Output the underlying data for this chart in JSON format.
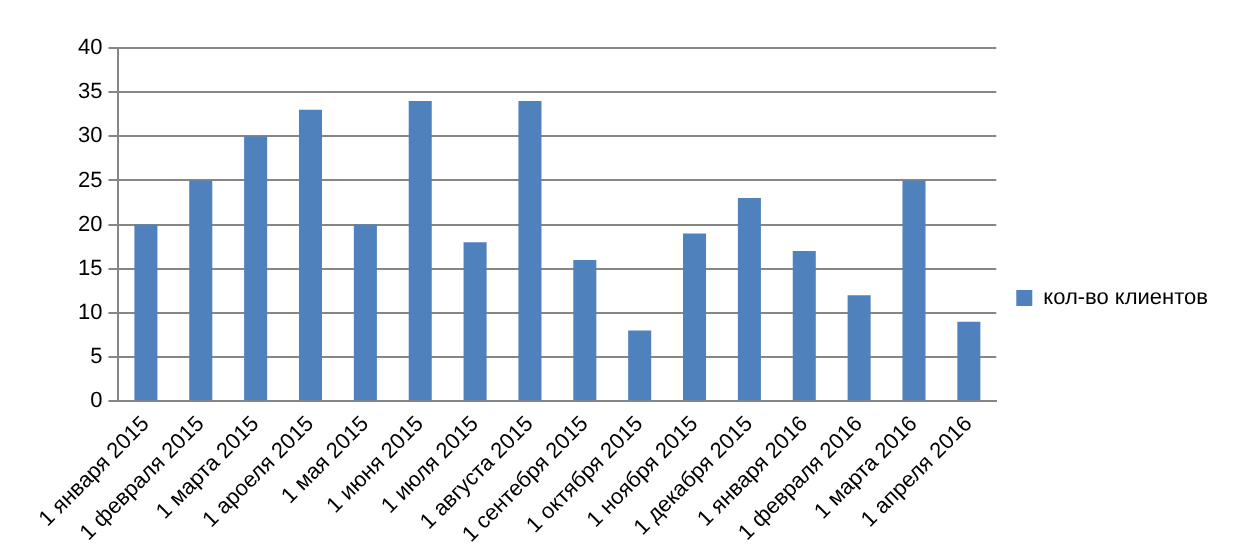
{
  "chart_data": {
    "type": "bar",
    "categories": [
      "1 января 2015",
      "1 февраля 2015",
      "1 марта 2015",
      "1 ароеля 2015",
      "1 мая 2015",
      "1 июня 2015",
      "1 июля 2015",
      "1 августа 2015",
      "1 сентебря 2015",
      "1 октября 2015",
      "1 ноября 2015",
      "1 декабря 2015",
      "1 января 2016",
      "1 февраля 2016",
      "1 марта 2016",
      "1 апреля 2016"
    ],
    "series": [
      {
        "name": "кол-во клиентов",
        "color": "#4f81bd",
        "values": [
          20,
          25,
          30,
          33,
          20,
          34,
          18,
          34,
          16,
          8,
          19,
          23,
          17,
          12,
          25,
          9
        ]
      }
    ],
    "ylim": [
      0,
      40
    ],
    "yticks": [
      0,
      5,
      10,
      15,
      20,
      25,
      30,
      35,
      40
    ],
    "grid": "y",
    "legend": "right"
  }
}
